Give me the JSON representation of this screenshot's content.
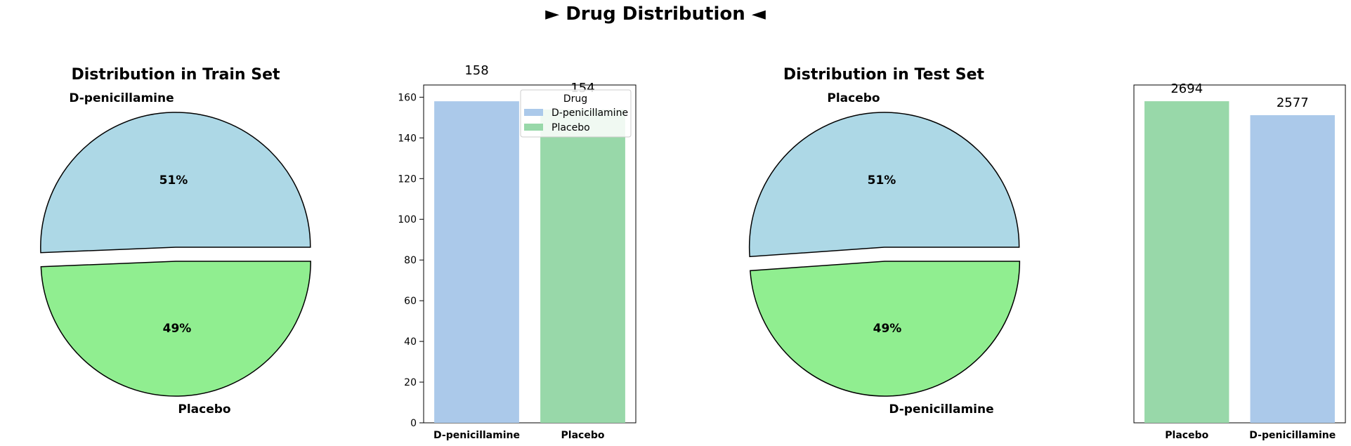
{
  "figure": {
    "suptitle": "► Drug Distribution ◄"
  },
  "colors": {
    "pie_first": "#add8e6",
    "pie_second": "#90ee90",
    "bar_dpen": "#abc9ea",
    "bar_placebo": "#98d8a9"
  },
  "chart_data": [
    {
      "type": "pie",
      "title": "Distribution in Train Set",
      "labels": [
        "D-penicillamine",
        "Placebo"
      ],
      "values": [
        158,
        154
      ],
      "autopct": [
        "51%",
        "49%"
      ],
      "colors": [
        "#add8e6",
        "#90ee90"
      ],
      "explode": true
    },
    {
      "type": "bar",
      "categories": [
        "D-penicillamine",
        "Placebo"
      ],
      "values": [
        158,
        154
      ],
      "value_labels": [
        "158",
        "154"
      ],
      "colors": [
        "#abc9ea",
        "#98d8a9"
      ],
      "ylim": [
        0,
        166
      ],
      "yticks": [
        0,
        20,
        40,
        60,
        80,
        100,
        120,
        140,
        160
      ],
      "legend": {
        "title": "Drug",
        "entries": [
          "D-penicillamine",
          "Placebo"
        ],
        "placement": "upper right"
      }
    },
    {
      "type": "pie",
      "title": "Distribution in Test Set",
      "labels": [
        "Placebo",
        "D-penicillamine"
      ],
      "values": [
        2694,
        2577
      ],
      "autopct": [
        "51%",
        "49%"
      ],
      "colors": [
        "#add8e6",
        "#90ee90"
      ],
      "explode": true
    },
    {
      "type": "bar",
      "categories": [
        "Placebo",
        "D-penicillamine"
      ],
      "values": [
        2694,
        2577
      ],
      "value_labels": [
        "2694",
        "2577"
      ],
      "colors": [
        "#98d8a9",
        "#abc9ea"
      ],
      "ylim": [
        0,
        2830
      ],
      "yticks": []
    }
  ]
}
